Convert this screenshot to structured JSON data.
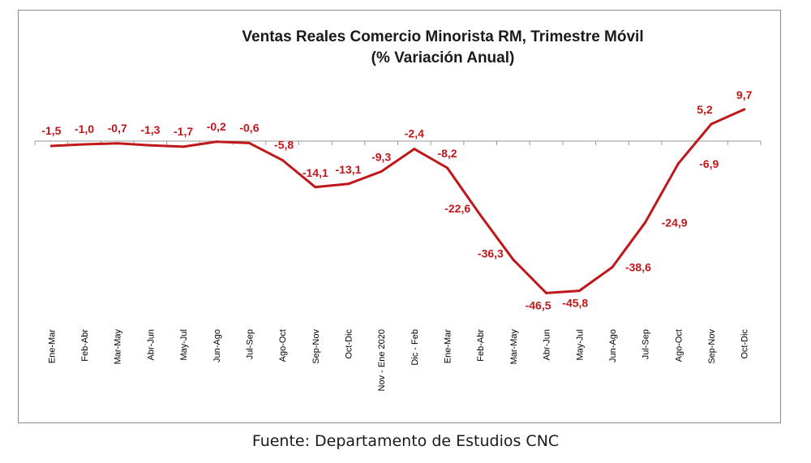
{
  "chart_data": {
    "type": "line",
    "title": "Ventas Reales Comercio Minorista RM, Trimestre Móvil",
    "subtitle": "(% Variación Anual)",
    "xlabel": "",
    "ylabel": "",
    "categories": [
      "Ene-Mar",
      "Feb-Abr",
      "Mar-May",
      "Abr-Jun",
      "May-Jul",
      "Jun-Ago",
      "Jul-Sep",
      "Ago-Oct",
      "Sep-Nov",
      "Oct-Dic",
      "Nov - Ene 2020",
      "Dic - Feb",
      "Ene-Mar",
      "Feb-Abr",
      "Mar-May",
      "Abr-Jun",
      "May-Jul",
      "Jun-Ago",
      "Jul-Sep",
      "Ago-Oct",
      "Sep-Nov",
      "Oct-Dic"
    ],
    "values": [
      -1.5,
      -1.0,
      -0.7,
      -1.3,
      -1.7,
      -0.2,
      -0.6,
      -5.8,
      -14.1,
      -13.1,
      -9.3,
      -2.4,
      -8.2,
      -22.6,
      -36.3,
      -46.5,
      -45.8,
      -38.6,
      -24.9,
      -6.9,
      5.2,
      9.7
    ],
    "value_labels": [
      "-1,5",
      "-1,0",
      "-0,7",
      "-1,3",
      "-1,7",
      "-0,2",
      "-0,6",
      "-5,8",
      "-14,1",
      "-13,1",
      "-9,3",
      "-2,4",
      "-8,2",
      "-22,6",
      "-36,3",
      "-46,5",
      "-45,8",
      "-38,6",
      "-24,9",
      "-6,9",
      "5,2",
      "9,7"
    ],
    "ylim": [
      -58,
      14
    ],
    "grid": false,
    "legend": "none",
    "line_color": "#c0171a"
  },
  "footer": {
    "source": "Fuente: Departamento de Estudios CNC"
  }
}
